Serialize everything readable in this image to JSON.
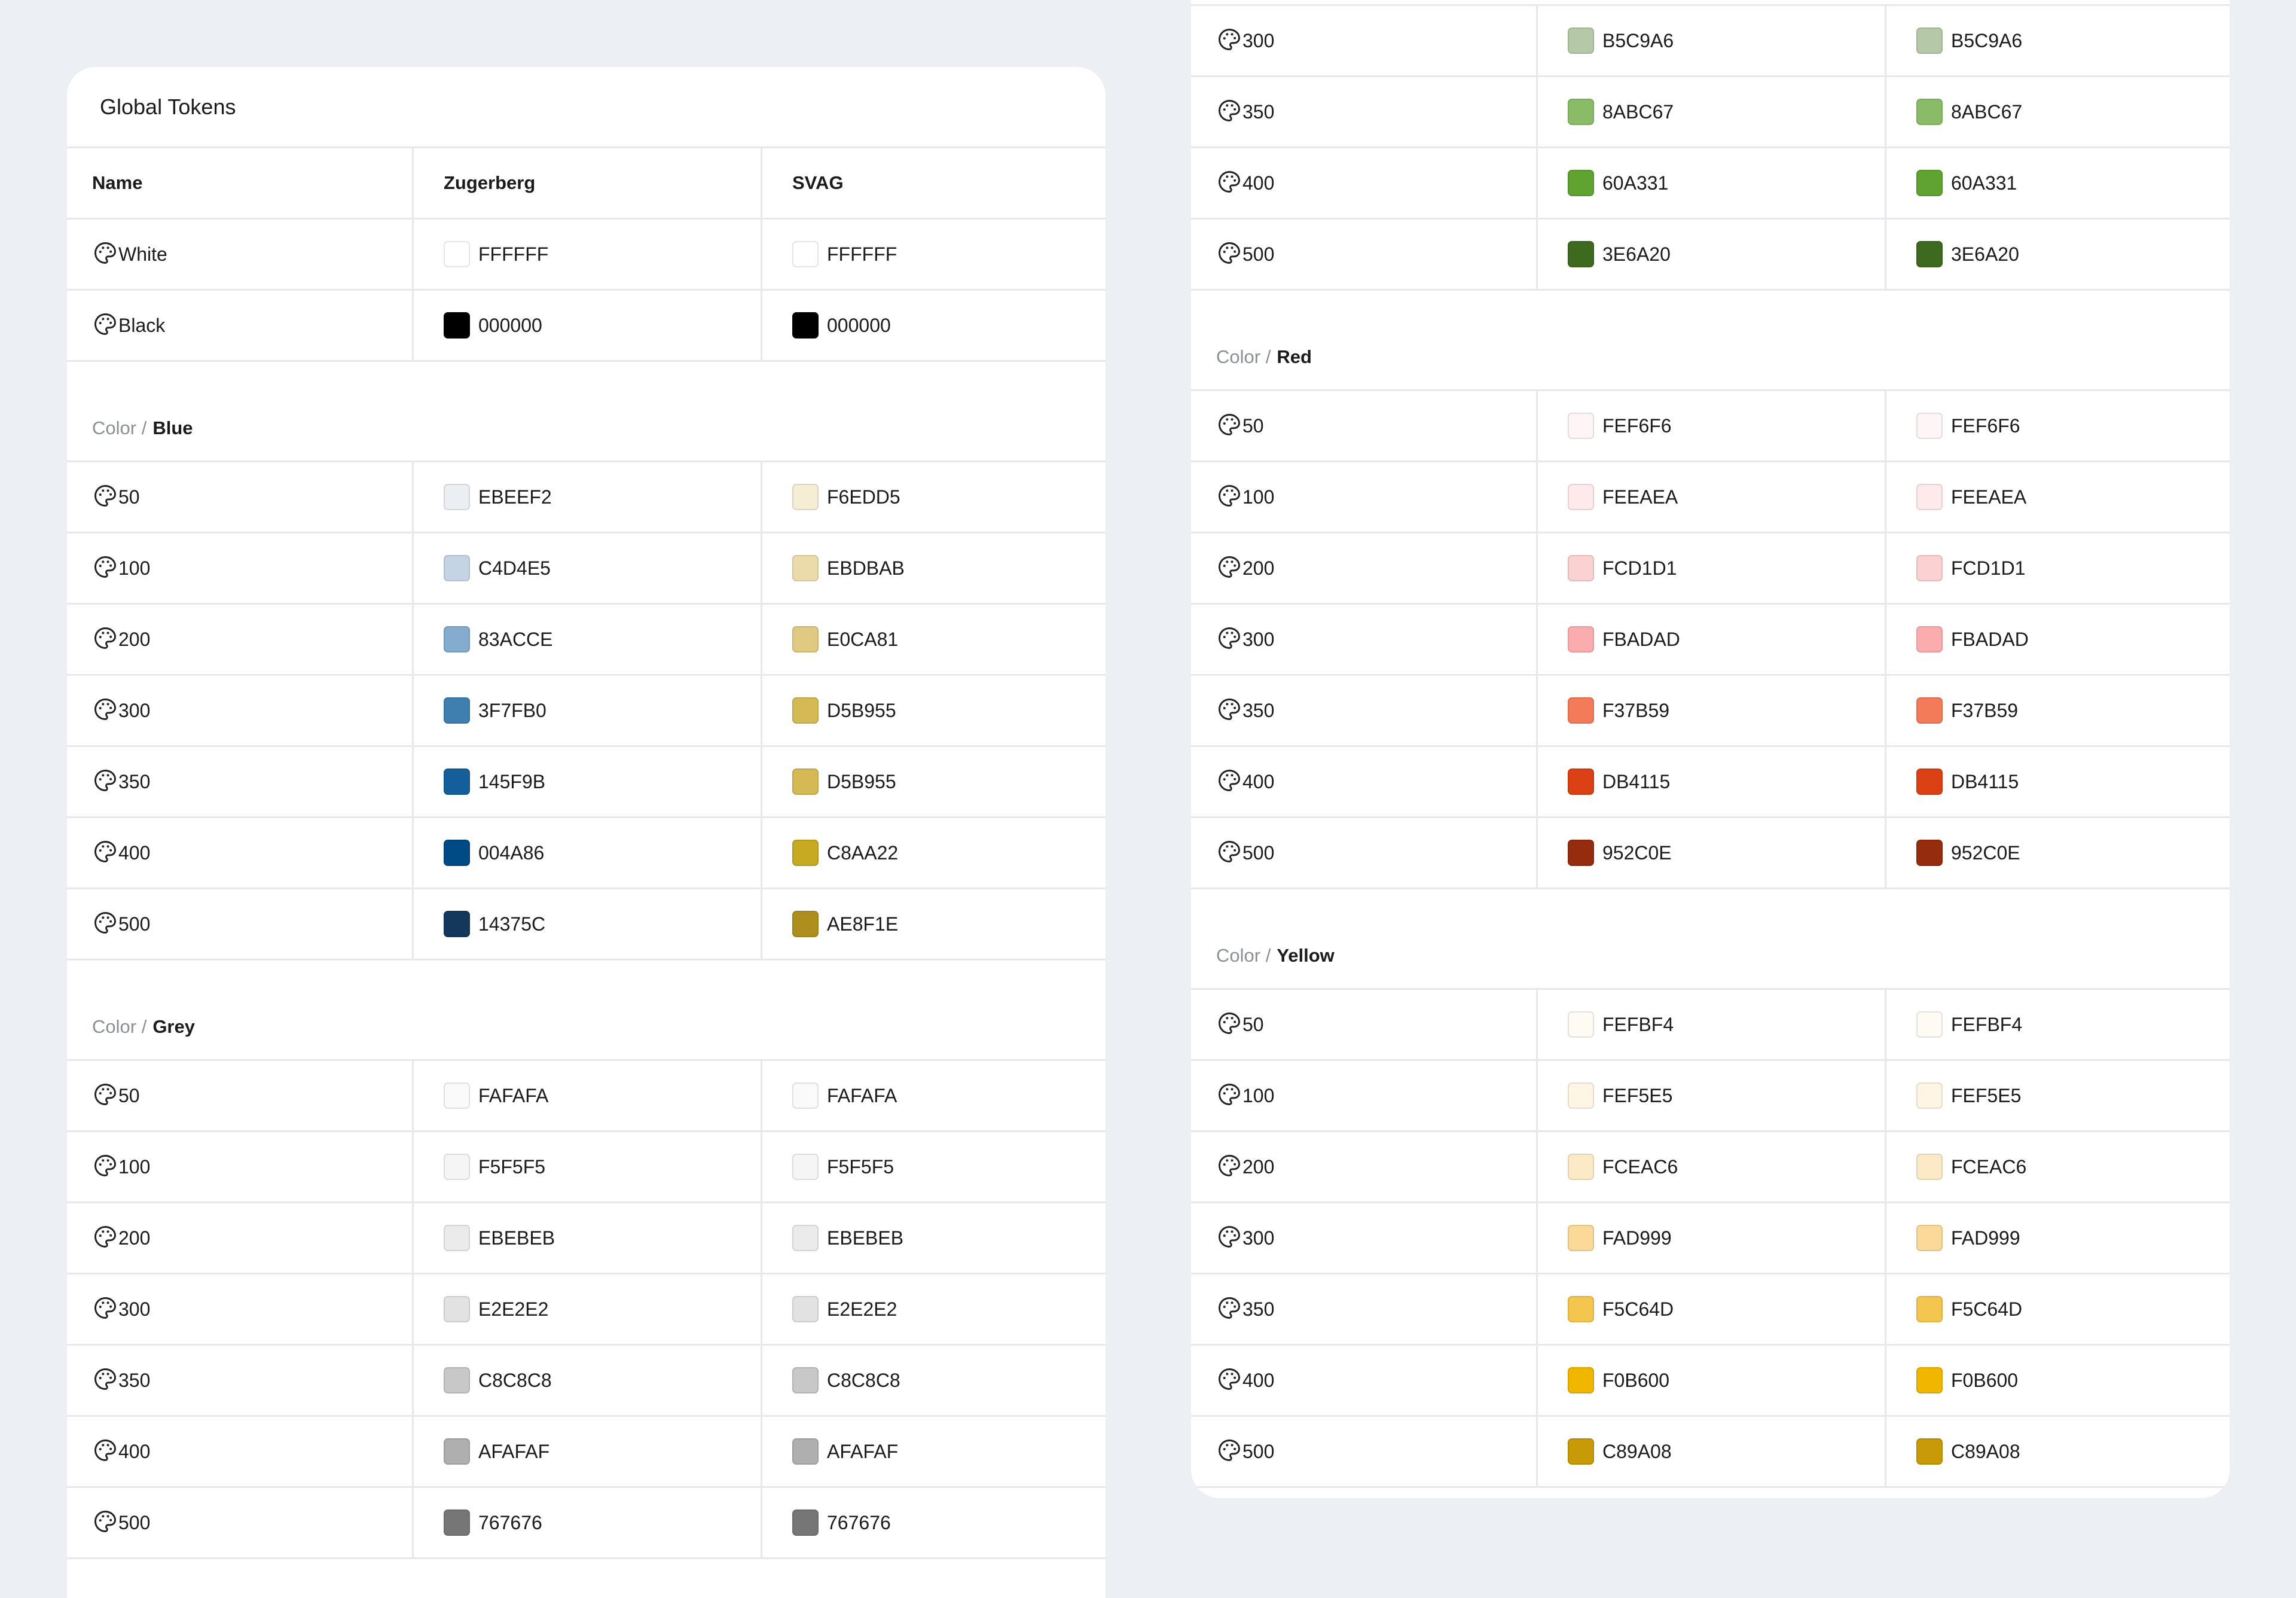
{
  "left_card": {
    "title": "Global Tokens",
    "headers": {
      "name": "Name",
      "col2": "Zugerberg",
      "col3": "SVAG"
    },
    "base_rows": [
      {
        "name": "White",
        "zug": "FFFFFF",
        "svag": "FFFFFF"
      },
      {
        "name": "Black",
        "zug": "000000",
        "svag": "000000"
      }
    ],
    "groups": [
      {
        "prefix": "Color /",
        "name": "Blue",
        "rows": [
          {
            "name": "50",
            "zug": "EBEEF2",
            "svag": "F6EDD5"
          },
          {
            "name": "100",
            "zug": "C4D4E5",
            "svag": "EBDBAB"
          },
          {
            "name": "200",
            "zug": "83ACCE",
            "svag": "E0CA81"
          },
          {
            "name": "300",
            "zug": "3F7FB0",
            "svag": "D5B955"
          },
          {
            "name": "350",
            "zug": "145F9B",
            "svag": "D5B955"
          },
          {
            "name": "400",
            "zug": "004A86",
            "svag": "C8AA22"
          },
          {
            "name": "500",
            "zug": "14375C",
            "svag": "AE8F1E"
          }
        ]
      },
      {
        "prefix": "Color /",
        "name": "Grey",
        "rows": [
          {
            "name": "50",
            "zug": "FAFAFA",
            "svag": "FAFAFA"
          },
          {
            "name": "100",
            "zug": "F5F5F5",
            "svag": "F5F5F5"
          },
          {
            "name": "200",
            "zug": "EBEBEB",
            "svag": "EBEBEB"
          },
          {
            "name": "300",
            "zug": "E2E2E2",
            "svag": "E2E2E2"
          },
          {
            "name": "350",
            "zug": "C8C8C8",
            "svag": "C8C8C8"
          },
          {
            "name": "400",
            "zug": "AFAFAF",
            "svag": "AFAFAF"
          },
          {
            "name": "500",
            "zug": "767676",
            "svag": "767676"
          }
        ]
      }
    ]
  },
  "right_card": {
    "green_rows": [
      {
        "name": "300",
        "zug": "B5C9A6",
        "svag": "B5C9A6"
      },
      {
        "name": "350",
        "zug": "8ABC67",
        "svag": "8ABC67"
      },
      {
        "name": "400",
        "zug": "60A331",
        "svag": "60A331"
      },
      {
        "name": "500",
        "zug": "3E6A20",
        "svag": "3E6A20"
      }
    ],
    "groups": [
      {
        "prefix": "Color /",
        "name": "Red",
        "rows": [
          {
            "name": "50",
            "zug": "FEF6F6",
            "svag": "FEF6F6"
          },
          {
            "name": "100",
            "zug": "FEEAEA",
            "svag": "FEEAEA"
          },
          {
            "name": "200",
            "zug": "FCD1D1",
            "svag": "FCD1D1"
          },
          {
            "name": "300",
            "zug": "FBADAD",
            "svag": "FBADAD"
          },
          {
            "name": "350",
            "zug": "F37B59",
            "svag": "F37B59"
          },
          {
            "name": "400",
            "zug": "DB4115",
            "svag": "DB4115"
          },
          {
            "name": "500",
            "zug": "952C0E",
            "svag": "952C0E"
          }
        ]
      },
      {
        "prefix": "Color /",
        "name": "Yellow",
        "rows": [
          {
            "name": "50",
            "zug": "FEFBF4",
            "svag": "FEFBF4"
          },
          {
            "name": "100",
            "zug": "FEF5E5",
            "svag": "FEF5E5"
          },
          {
            "name": "200",
            "zug": "FCEAC6",
            "svag": "FCEAC6"
          },
          {
            "name": "300",
            "zug": "FAD999",
            "svag": "FAD999"
          },
          {
            "name": "350",
            "zug": "F5C64D",
            "svag": "F5C64D"
          },
          {
            "name": "400",
            "zug": "F0B600",
            "svag": "F0B600"
          },
          {
            "name": "500",
            "zug": "C89A08",
            "svag": "C89A08"
          }
        ]
      }
    ]
  },
  "icon": "palette-icon"
}
